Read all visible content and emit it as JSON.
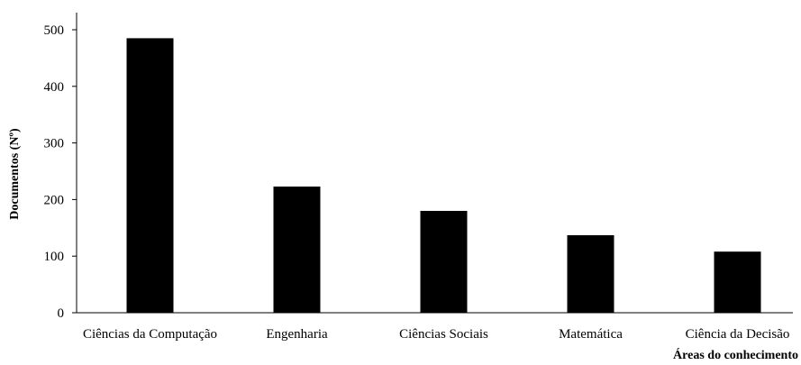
{
  "chart_data": {
    "type": "bar",
    "categories": [
      "Ciências da Computação",
      "Engenharia",
      "Ciências Sociais",
      "Matemática",
      "Ciência da Decisão"
    ],
    "values": [
      485,
      223,
      180,
      137,
      108
    ],
    "xlabel": "Áreas do conhecimento",
    "ylabel": "Documentos (Nº)",
    "ylim": [
      0,
      500
    ],
    "yticks": [
      0,
      100,
      200,
      300,
      400,
      500
    ],
    "grid": false,
    "legend": "none",
    "bar_color": "#000000",
    "axis_color": "#000000"
  }
}
